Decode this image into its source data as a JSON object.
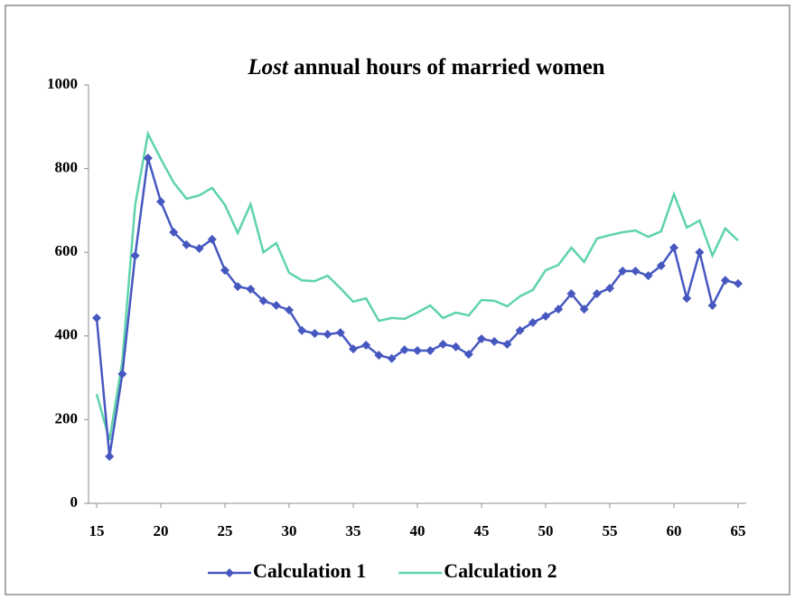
{
  "chart_data": {
    "type": "line",
    "title": "Lost annual hours of married women",
    "title_italic_words": 1,
    "x": [
      15,
      16,
      17,
      18,
      19,
      20,
      21,
      22,
      23,
      24,
      25,
      26,
      27,
      28,
      29,
      30,
      31,
      32,
      33,
      34,
      35,
      36,
      37,
      38,
      39,
      40,
      41,
      42,
      43,
      44,
      45,
      46,
      47,
      48,
      49,
      50,
      51,
      52,
      53,
      54,
      55,
      56,
      57,
      58,
      59,
      60,
      61,
      62,
      63,
      64,
      65
    ],
    "series": [
      {
        "name": "Calculation 1",
        "color": "#4658c0",
        "marker": "diamond",
        "values": [
          443,
          112,
          309,
          592,
          825,
          721,
          648,
          618,
          609,
          631,
          557,
          518,
          512,
          484,
          473,
          462,
          413,
          406,
          404,
          408,
          369,
          378,
          354,
          346,
          367,
          365,
          365,
          380,
          374,
          356,
          393,
          387,
          380,
          413,
          432,
          447,
          464,
          501,
          464,
          501,
          514,
          555,
          555,
          544,
          568,
          611,
          490,
          600,
          473,
          533,
          525
        ]
      },
      {
        "name": "Calculation 2",
        "color": "#5ed3ab",
        "values": [
          261,
          151,
          339,
          713,
          883,
          823,
          767,
          728,
          736,
          754,
          713,
          646,
          715,
          600,
          622,
          551,
          533,
          531,
          544,
          514,
          482,
          490,
          436,
          443,
          441,
          456,
          473,
          443,
          456,
          449,
          486,
          484,
          471,
          495,
          510,
          557,
          570,
          611,
          577,
          633,
          641,
          648,
          652,
          637,
          650,
          739,
          659,
          676,
          592,
          657,
          628
        ]
      }
    ],
    "xlim": [
      15,
      65
    ],
    "xticks": [
      15,
      20,
      25,
      30,
      35,
      40,
      45,
      50,
      55,
      60,
      65
    ],
    "ylim": [
      0,
      1000
    ],
    "yticks": [
      0,
      200,
      400,
      600,
      800,
      1000
    ],
    "legend": "bottom"
  }
}
